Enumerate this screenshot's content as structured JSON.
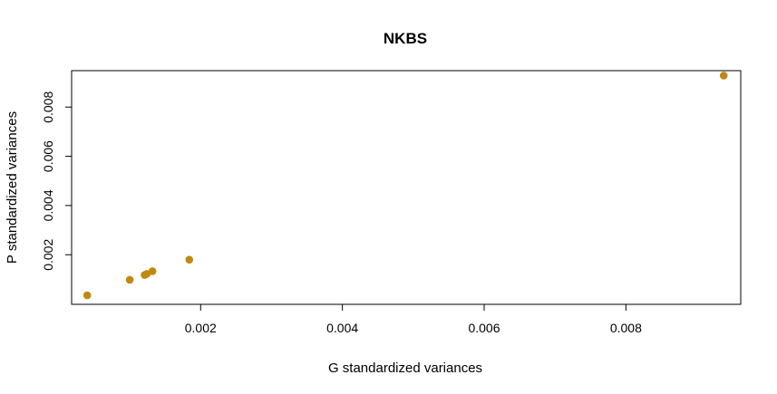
{
  "chart_data": {
    "type": "scatter",
    "title": "NKBS",
    "xlabel": "G standardized variances",
    "ylabel": "P standardized variances",
    "xlim": [
      0.00018,
      0.00962
    ],
    "ylim": [
      -1.5e-05,
      0.00948
    ],
    "x_ticks": [
      0.002,
      0.004,
      0.006,
      0.008
    ],
    "x_tick_labels": [
      "0.002",
      "0.004",
      "0.006",
      "0.008"
    ],
    "y_ticks": [
      0.002,
      0.004,
      0.006,
      0.008
    ],
    "y_tick_labels": [
      "0.002",
      "0.004",
      "0.006",
      "0.008"
    ],
    "grid": false,
    "legend": "none",
    "point_color": "#BF8A0F",
    "points": [
      {
        "x": 0.0004,
        "y": 0.00035
      },
      {
        "x": 0.001,
        "y": 0.00098
      },
      {
        "x": 0.00121,
        "y": 0.00118
      },
      {
        "x": 0.00124,
        "y": 0.00122
      },
      {
        "x": 0.00132,
        "y": 0.00133
      },
      {
        "x": 0.00184,
        "y": 0.0018
      },
      {
        "x": 0.00938,
        "y": 0.00928
      }
    ]
  }
}
